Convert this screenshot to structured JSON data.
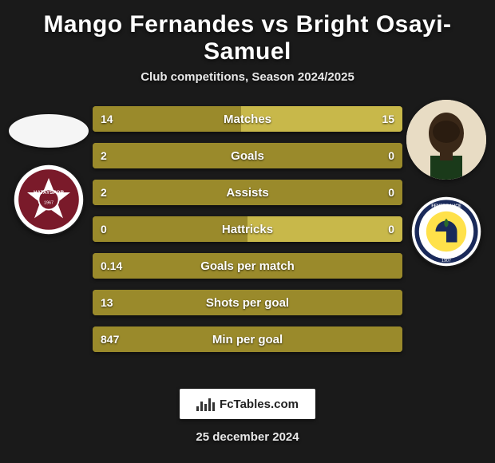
{
  "title": "Mango Fernandes vs Bright Osayi-Samuel",
  "subtitle": "Club competitions, Season 2024/2025",
  "date": "25 december 2024",
  "fctables_label": "FcTables.com",
  "colors": {
    "bar_left": "#9a8a2b",
    "bar_right": "#c8b84a",
    "background": "#1a1a1a",
    "text": "#ffffff",
    "player1_club_primary": "#7a1a2a",
    "player1_club_secondary": "#ffffff",
    "player2_club_primary": "#ffe14a",
    "player2_club_secondary": "#1a2a5a"
  },
  "left": {
    "player": "Mango Fernandes",
    "avatar_placeholder": true,
    "club": "Hatayspor"
  },
  "right": {
    "player": "Bright Osayi-Samuel",
    "club": "Fenerbahçe"
  },
  "stats": [
    {
      "label": "Matches",
      "l": "14",
      "r": "15",
      "lp": 48,
      "rp": 52
    },
    {
      "label": "Goals",
      "l": "2",
      "r": "0",
      "lp": 100,
      "rp": 0
    },
    {
      "label": "Assists",
      "l": "2",
      "r": "0",
      "lp": 100,
      "rp": 0
    },
    {
      "label": "Hattricks",
      "l": "0",
      "r": "0",
      "lp": 50,
      "rp": 50
    },
    {
      "label": "Goals per match",
      "l": "0.14",
      "r": "",
      "lp": 100,
      "rp": 0
    },
    {
      "label": "Shots per goal",
      "l": "13",
      "r": "",
      "lp": 100,
      "rp": 0
    },
    {
      "label": "Min per goal",
      "l": "847",
      "r": "",
      "lp": 100,
      "rp": 0
    }
  ]
}
